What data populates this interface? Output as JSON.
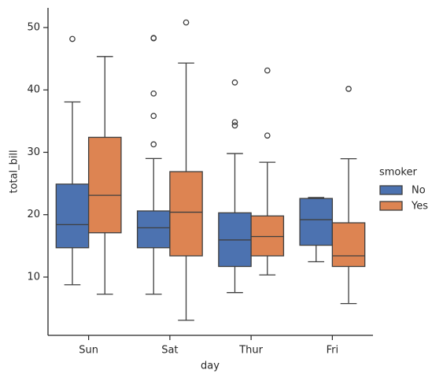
{
  "chart_data": {
    "type": "box",
    "x_label": "day",
    "y_label": "total_bill",
    "categories": [
      "Sun",
      "Sat",
      "Thur",
      "Fri"
    ],
    "legend_title": "smoker",
    "legend_position": "right",
    "ylim": [
      0.66,
      53.15
    ],
    "yticks": [
      10,
      20,
      30,
      40,
      50
    ],
    "series": [
      {
        "name": "No",
        "color": "#4c72b0",
        "boxes": [
          {
            "min": 8.77,
            "q1": 14.7,
            "median": 18.4,
            "q3": 24.9,
            "max": 38.07,
            "fliers": [
              48.17
            ]
          },
          {
            "min": 7.25,
            "q1": 14.7,
            "median": 17.9,
            "q3": 20.6,
            "max": 29.0,
            "fliers": [
              48.27,
              48.33,
              39.42,
              35.83,
              31.27
            ]
          },
          {
            "min": 7.51,
            "q1": 11.7,
            "median": 15.95,
            "q3": 20.3,
            "max": 29.8,
            "fliers": [
              41.19,
              34.83,
              34.3
            ]
          },
          {
            "min": 12.46,
            "q1": 15.1,
            "median": 19.2,
            "q3": 22.6,
            "max": 22.75,
            "fliers": []
          }
        ]
      },
      {
        "name": "Yes",
        "color": "#dd8452",
        "boxes": [
          {
            "min": 7.25,
            "q1": 17.1,
            "median": 23.1,
            "q3": 32.4,
            "max": 45.35,
            "fliers": []
          },
          {
            "min": 3.07,
            "q1": 13.4,
            "median": 20.4,
            "q3": 26.9,
            "max": 44.3,
            "fliers": [
              50.81
            ]
          },
          {
            "min": 10.34,
            "q1": 13.4,
            "median": 16.5,
            "q3": 19.8,
            "max": 28.4,
            "fliers": [
              43.11,
              32.68
            ]
          },
          {
            "min": 5.75,
            "q1": 11.7,
            "median": 13.4,
            "q3": 18.7,
            "max": 28.97,
            "fliers": [
              40.17
            ]
          }
        ]
      }
    ]
  }
}
